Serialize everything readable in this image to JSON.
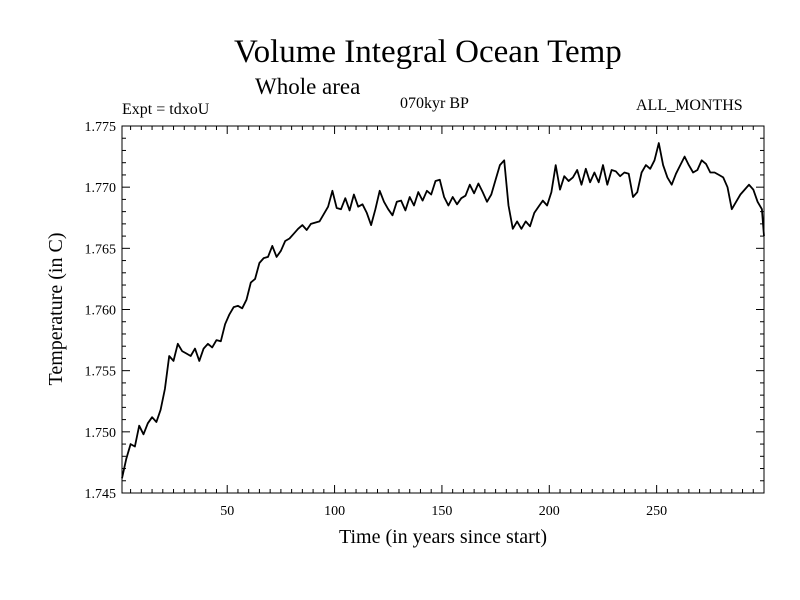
{
  "header": {
    "title": "Volume Integral Ocean Temp",
    "subtitle": "Whole area",
    "expt": "Expt = tdxoU",
    "period": "070kyr BP",
    "months": "ALL_MONTHS"
  },
  "chart_data": {
    "type": "line",
    "title": "Volume Integral Ocean Temp",
    "subtitle": "Whole area",
    "xlabel": "Time (in years since start)",
    "ylabel": "Temperature (in C)",
    "xlim": [
      1,
      300
    ],
    "ylim": [
      1.745,
      1.775
    ],
    "xticks": [
      50,
      100,
      150,
      200,
      250
    ],
    "xtick_labels": [
      "50",
      "100",
      "150",
      "200",
      "250"
    ],
    "yticks": [
      1.745,
      1.75,
      1.755,
      1.76,
      1.765,
      1.77,
      1.775
    ],
    "ytick_labels": [
      "1.745",
      "1.750",
      "1.755",
      "1.760",
      "1.765",
      "1.770",
      "1.775"
    ],
    "grid": false,
    "series": [
      {
        "name": "Whole area",
        "x": [
          1,
          3,
          5,
          7,
          9,
          11,
          13,
          15,
          17,
          19,
          21,
          23,
          25,
          27,
          29,
          31,
          33,
          35,
          37,
          39,
          41,
          43,
          45,
          47,
          49,
          51,
          53,
          55,
          57,
          59,
          61,
          63,
          65,
          67,
          69,
          71,
          73,
          75,
          77,
          79,
          81,
          83,
          85,
          87,
          89,
          91,
          93,
          95,
          97,
          99,
          101,
          103,
          105,
          107,
          109,
          111,
          113,
          115,
          117,
          119,
          121,
          123,
          125,
          127,
          129,
          131,
          133,
          135,
          137,
          139,
          141,
          143,
          145,
          147,
          149,
          151,
          153,
          155,
          157,
          159,
          161,
          163,
          165,
          167,
          169,
          171,
          173,
          175,
          177,
          179,
          181,
          183,
          185,
          187,
          189,
          191,
          193,
          195,
          197,
          199,
          201,
          203,
          205,
          207,
          209,
          211,
          213,
          215,
          217,
          219,
          221,
          223,
          225,
          227,
          229,
          231,
          233,
          235,
          237,
          239,
          241,
          243,
          245,
          247,
          249,
          251,
          253,
          255,
          257,
          259,
          261,
          263,
          265,
          267,
          269,
          271,
          273,
          275,
          277,
          279,
          281,
          283,
          285,
          287,
          289,
          291,
          293,
          295,
          297,
          299,
          300
        ],
        "y": [
          1.7462,
          1.7478,
          1.749,
          1.7488,
          1.7505,
          1.7498,
          1.7507,
          1.7512,
          1.7508,
          1.7518,
          1.7535,
          1.7562,
          1.7558,
          1.7572,
          1.7566,
          1.7564,
          1.7562,
          1.7568,
          1.7558,
          1.7568,
          1.7572,
          1.7569,
          1.7575,
          1.7574,
          1.7588,
          1.7596,
          1.7602,
          1.7603,
          1.7601,
          1.7608,
          1.7622,
          1.7625,
          1.7638,
          1.7642,
          1.7643,
          1.7652,
          1.7643,
          1.7648,
          1.7656,
          1.7658,
          1.7662,
          1.7666,
          1.7669,
          1.7665,
          1.767,
          1.7671,
          1.7672,
          1.7678,
          1.7684,
          1.7697,
          1.7683,
          1.7682,
          1.7691,
          1.7681,
          1.7694,
          1.7684,
          1.7686,
          1.7679,
          1.7669,
          1.7682,
          1.7697,
          1.7688,
          1.7682,
          1.7677,
          1.7688,
          1.7689,
          1.7681,
          1.7692,
          1.7685,
          1.7696,
          1.7689,
          1.7697,
          1.7694,
          1.7705,
          1.7706,
          1.7692,
          1.7685,
          1.7692,
          1.7686,
          1.7691,
          1.7693,
          1.7702,
          1.7695,
          1.7703,
          1.7696,
          1.7688,
          1.7694,
          1.7706,
          1.7718,
          1.7722,
          1.7685,
          1.7666,
          1.7672,
          1.7666,
          1.7672,
          1.7668,
          1.7679,
          1.7684,
          1.7689,
          1.7685,
          1.7696,
          1.7718,
          1.7698,
          1.7709,
          1.7705,
          1.7708,
          1.7714,
          1.7702,
          1.7715,
          1.7704,
          1.7712,
          1.7704,
          1.7718,
          1.7702,
          1.7714,
          1.7713,
          1.7709,
          1.7712,
          1.7711,
          1.7692,
          1.7696,
          1.7712,
          1.7718,
          1.7715,
          1.7722,
          1.7736,
          1.7718,
          1.7708,
          1.7702,
          1.7711,
          1.7718,
          1.7725,
          1.7718,
          1.7712,
          1.7714,
          1.7722,
          1.7719,
          1.7712,
          1.7712,
          1.771,
          1.7708,
          1.77,
          1.7682,
          1.7688,
          1.7694,
          1.7698,
          1.7702,
          1.7698,
          1.7688,
          1.7682,
          1.766
        ]
      }
    ]
  }
}
